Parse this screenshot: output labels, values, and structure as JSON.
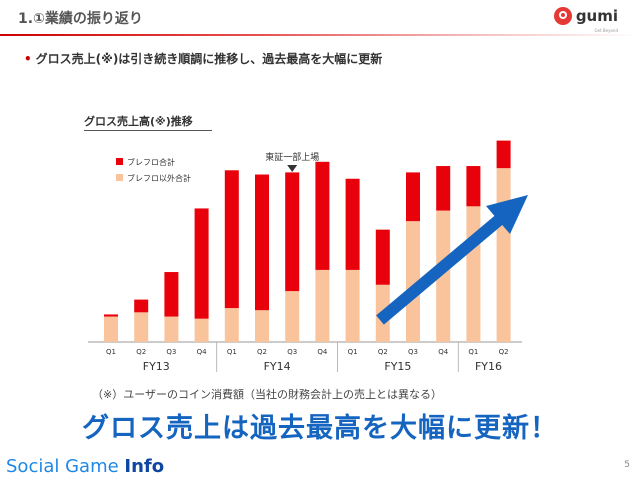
{
  "slide": {
    "title": "1.①業績の振り返り",
    "bullet": "グロス売上(※)は引き続き順調に推移し、過去最高を大幅に更新",
    "footnote": "（※）ユーザーのコイン消費額（当社の財務会計上の売上とは異なる）",
    "headline": "グロス売上は過去最高を大幅に更新！",
    "page_number": "5"
  },
  "logo": {
    "text": "gumi",
    "tagline": "Get Beyond",
    "accent": "#e53935"
  },
  "brand": {
    "part1": "Social Game ",
    "part2": "Info"
  },
  "colors": {
    "series_a": "#e8000b",
    "series_b": "#f9c49c",
    "arrow": "#1565c0",
    "accent": "#cc0000"
  },
  "chart_data": {
    "type": "bar",
    "stacked": true,
    "title": "グロス売上高(※)推移",
    "categories": [
      "Q1",
      "Q2",
      "Q3",
      "Q4",
      "Q1",
      "Q2",
      "Q3",
      "Q4",
      "Q1",
      "Q2",
      "Q3",
      "Q4",
      "Q1",
      "Q2"
    ],
    "fiscal_years": [
      {
        "label": "FY13",
        "start": 0,
        "end": 3
      },
      {
        "label": "FY14",
        "start": 4,
        "end": 7
      },
      {
        "label": "FY15",
        "start": 8,
        "end": 11
      },
      {
        "label": "FY16",
        "start": 12,
        "end": 13
      }
    ],
    "series": [
      {
        "name": "ブレフロ以外合計",
        "values": [
          12,
          14,
          12,
          11,
          16,
          15,
          24,
          34,
          34,
          27,
          57,
          62,
          64,
          82
        ]
      },
      {
        "name": "ブレフロ合計",
        "values": [
          1,
          6,
          21,
          52,
          65,
          64,
          56,
          51,
          43,
          26,
          23,
          21,
          19,
          13
        ]
      }
    ],
    "legend_position": "top-left",
    "annotation": {
      "text": "東証一部上場",
      "index": 6
    },
    "trend_arrow": true
  }
}
